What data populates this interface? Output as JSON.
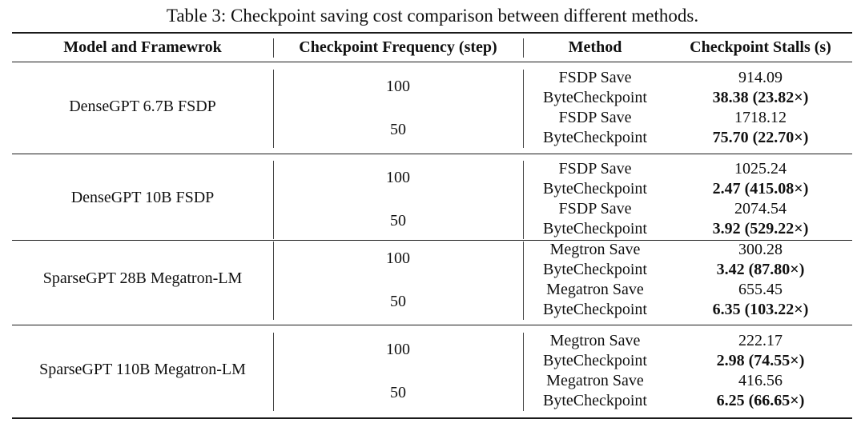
{
  "table": {
    "caption": "Table 3: Checkpoint saving cost comparison between different methods.",
    "headers": {
      "model": "Model and Framewrok",
      "frequency": "Checkpoint Frequency (step)",
      "method": "Method",
      "stalls": "Checkpoint Stalls (s)"
    },
    "groups": [
      {
        "model": "DenseGPT 6.7B FSDP",
        "freqs": [
          {
            "freq": "100",
            "rows": [
              {
                "method": "FSDP Save",
                "stall": "914.09",
                "bold": false
              },
              {
                "method": "ByteCheckpoint",
                "stall": "38.38 (23.82×)",
                "bold": true
              }
            ]
          },
          {
            "freq": "50",
            "rows": [
              {
                "method": "FSDP Save",
                "stall": "1718.12",
                "bold": false
              },
              {
                "method": "ByteCheckpoint",
                "stall": "75.70 (22.70×)",
                "bold": true
              }
            ]
          }
        ]
      },
      {
        "model": "DenseGPT 10B FSDP",
        "freqs": [
          {
            "freq": "100",
            "rows": [
              {
                "method": "FSDP Save",
                "stall": "1025.24",
                "bold": false
              },
              {
                "method": "ByteCheckpoint",
                "stall": "2.47 (415.08×)",
                "bold": true
              }
            ]
          },
          {
            "freq": "50",
            "rows": [
              {
                "method": "FSDP Save",
                "stall": "2074.54",
                "bold": false
              },
              {
                "method": "ByteCheckpoint",
                "stall": "3.92 (529.22×)",
                "bold": true
              }
            ]
          }
        ]
      },
      {
        "model": "SparseGPT 28B Megatron-LM",
        "freqs": [
          {
            "freq": "100",
            "rows": [
              {
                "method": "Megtron Save",
                "stall": "300.28",
                "bold": false
              },
              {
                "method": "ByteCheckpoint",
                "stall": "3.42 (87.80×)",
                "bold": true
              }
            ]
          },
          {
            "freq": "50",
            "rows": [
              {
                "method": "Megatron Save",
                "stall": "655.45",
                "bold": false
              },
              {
                "method": "ByteCheckpoint",
                "stall": "6.35 (103.22×)",
                "bold": true
              }
            ]
          }
        ]
      },
      {
        "model": "SparseGPT 110B Megatron-LM",
        "freqs": [
          {
            "freq": "100",
            "rows": [
              {
                "method": "Megtron Save",
                "stall": "222.17",
                "bold": false
              },
              {
                "method": "ByteCheckpoint",
                "stall": "2.98 (74.55×)",
                "bold": true
              }
            ]
          },
          {
            "freq": "50",
            "rows": [
              {
                "method": "Megatron Save",
                "stall": "416.56",
                "bold": false
              },
              {
                "method": "ByteCheckpoint",
                "stall": "6.25 (66.65×)",
                "bold": true
              }
            ]
          }
        ]
      }
    ]
  }
}
